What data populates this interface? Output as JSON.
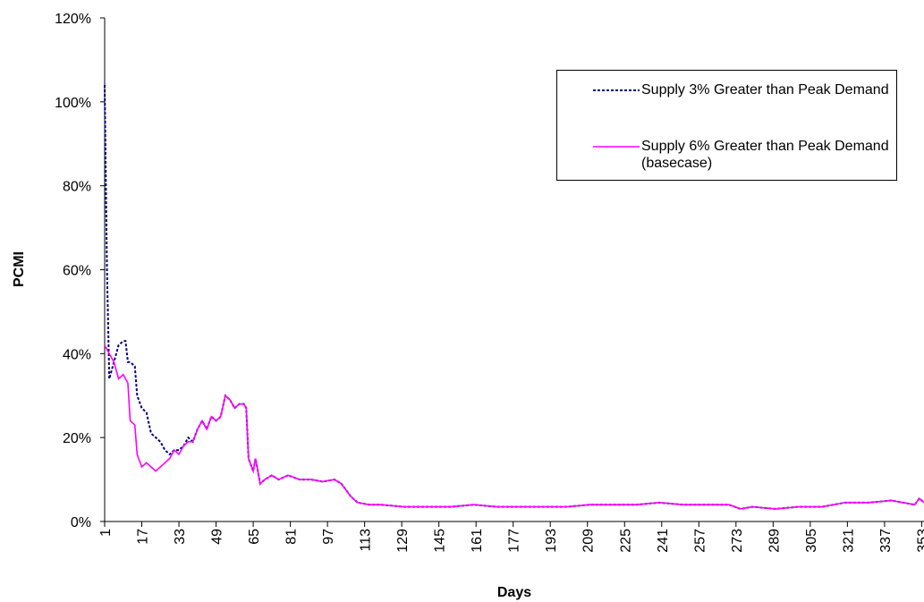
{
  "chart_data": {
    "type": "line",
    "x_label": "Days",
    "y_label": "PCMI",
    "x": [
      1,
      2,
      3,
      5,
      7,
      9,
      10,
      11,
      12,
      14,
      15,
      17,
      19,
      21,
      23,
      25,
      27,
      29,
      31,
      33,
      35,
      37,
      39,
      41,
      43,
      45,
      47,
      49,
      51,
      53,
      55,
      57,
      59,
      61,
      62,
      63,
      65,
      66,
      68,
      70,
      73,
      76,
      80,
      85,
      90,
      95,
      100,
      103,
      107,
      110,
      115,
      120,
      130,
      140,
      150,
      160,
      170,
      180,
      190,
      200,
      210,
      220,
      230,
      240,
      250,
      260,
      270,
      275,
      280,
      290,
      300,
      310,
      320,
      330,
      340,
      350,
      352,
      354
    ],
    "series": [
      {
        "name": "Supply 3% Greater than Peak Demand",
        "color": "#000080",
        "dash": true,
        "values": [
          104,
          60,
          34,
          38,
          42,
          43,
          43,
          38,
          38,
          37,
          30,
          27,
          26,
          21,
          20,
          19,
          17,
          16,
          17,
          17,
          18,
          20,
          19,
          22,
          24,
          22,
          25,
          24,
          25,
          30,
          29,
          27,
          28,
          28,
          27,
          15,
          12,
          15,
          9,
          10,
          11,
          10,
          11,
          10,
          10,
          9.5,
          10,
          9,
          6,
          4.5,
          4,
          4,
          3.5,
          3.5,
          3.5,
          4,
          3.5,
          3.5,
          3.5,
          3.5,
          4,
          4,
          4,
          4.5,
          4,
          4,
          4,
          3,
          3.5,
          3,
          3.5,
          3.5,
          4.5,
          4.5,
          5,
          4,
          5.5,
          4.5
        ]
      },
      {
        "name": "Supply 6% Greater than Peak Demand (basecase)",
        "color": "#ff00ff",
        "dash": false,
        "values": [
          42,
          41,
          40,
          38,
          34,
          35,
          34,
          33,
          24,
          23,
          16,
          13,
          14,
          13,
          12,
          13,
          14,
          15,
          17,
          16,
          18,
          19,
          19,
          22,
          24,
          22,
          25,
          24,
          25,
          30,
          29,
          27,
          28,
          28,
          27,
          15,
          12,
          15,
          9,
          10,
          11,
          10,
          11,
          10,
          10,
          9.5,
          10,
          9,
          6,
          4.5,
          4,
          4,
          3.5,
          3.5,
          3.5,
          4,
          3.5,
          3.5,
          3.5,
          3.5,
          4,
          4,
          4,
          4.5,
          4,
          4,
          4,
          3,
          3.5,
          3,
          3.5,
          3.5,
          4.5,
          4.5,
          5,
          4,
          5.5,
          4.5
        ]
      }
    ],
    "xlim": [
      1,
      354
    ],
    "xticks": [
      1,
      17,
      33,
      49,
      65,
      81,
      97,
      113,
      129,
      145,
      161,
      177,
      193,
      209,
      225,
      241,
      257,
      273,
      289,
      305,
      321,
      337,
      353
    ],
    "ylim": [
      0,
      120
    ],
    "yticks": [
      {
        "value": 0,
        "label": "0%"
      },
      {
        "value": 20,
        "label": "20%"
      },
      {
        "value": 40,
        "label": "40%"
      },
      {
        "value": 60,
        "label": "60%"
      },
      {
        "value": 80,
        "label": "80%"
      },
      {
        "value": 100,
        "label": "100%"
      },
      {
        "value": 120,
        "label": "120%"
      }
    ]
  }
}
